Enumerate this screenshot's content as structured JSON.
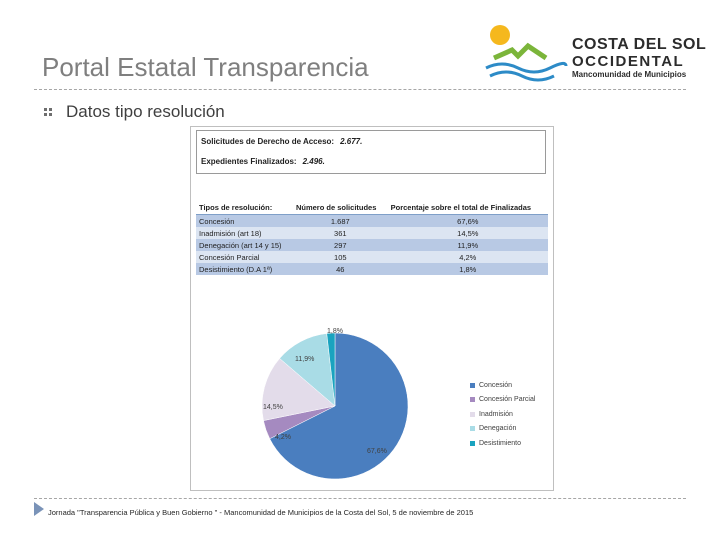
{
  "title": "Portal Estatal Transparencia",
  "logo": {
    "line1": "COSTA DEL SOL",
    "line2": "OCCIDENTAL",
    "line3": "Mancomunidad de Municipios"
  },
  "bullet": "Datos tipo resolución",
  "summary": {
    "solicitudes_label": "Solicitudes de Derecho de Acceso:",
    "solicitudes_value": "2.677.",
    "expedientes_label": "Expedientes Finalizados:",
    "expedientes_value": "2.496."
  },
  "table": {
    "headers": [
      "Tipos de resolución:",
      "Número de solicitudes",
      "Porcentaje sobre el total de Finalizadas"
    ],
    "rows": [
      [
        "Concesión",
        "1.687",
        "67,6%"
      ],
      [
        "Inadmisión (art 18)",
        "361",
        "14,5%"
      ],
      [
        "Denegación (art 14 y 15)",
        "297",
        "11,9%"
      ],
      [
        "Concesión Parcial",
        "105",
        "4,2%"
      ],
      [
        "Desistimiento (D.A 1ª)",
        "46",
        "1,8%"
      ]
    ]
  },
  "chart_data": {
    "type": "pie",
    "title": "",
    "slices": [
      {
        "name": "Concesión",
        "value": 67.6,
        "label": "67,6%",
        "color": "#4a7ebf"
      },
      {
        "name": "Concesión Parcial",
        "value": 4.2,
        "label": "4,2%",
        "color": "#a58ac0"
      },
      {
        "name": "Inadmisión",
        "value": 14.5,
        "label": "14,5%",
        "color": "#e3dcea"
      },
      {
        "name": "Denegación",
        "value": 11.9,
        "label": "11,9%",
        "color": "#a9dce6"
      },
      {
        "name": "Desistimiento",
        "value": 1.8,
        "label": "1,8%",
        "color": "#1aa3bf"
      }
    ],
    "legend_position": "right"
  },
  "footer": "Jornada \"Transparencia Pública y Buen Gobierno \" - Mancomunidad de Municipios de la Costa del Sol, 5 de noviembre de 2015"
}
